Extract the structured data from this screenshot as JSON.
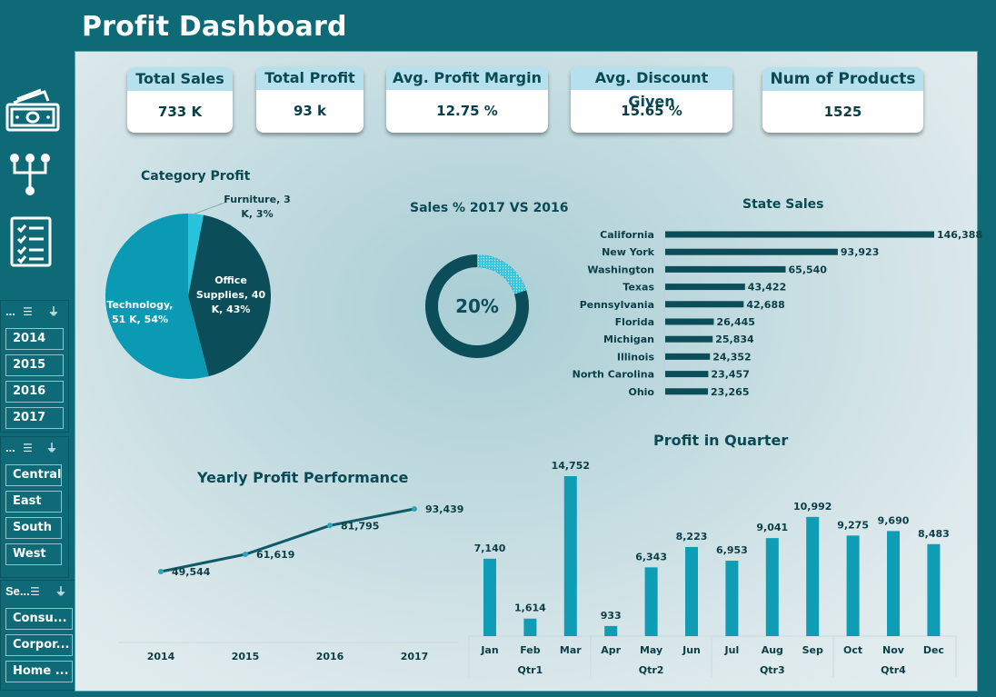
{
  "title": "Profit Dashboard",
  "kpis": [
    {
      "label": "Total Sales",
      "value": "733 K"
    },
    {
      "label": "Total Profit",
      "value": "93 k"
    },
    {
      "label": "Avg. Profit Margin",
      "value": "12.75 %"
    },
    {
      "label": "Avg. Discount Given",
      "value": "15.65 %"
    },
    {
      "label": "Num of Products",
      "value": "1525"
    }
  ],
  "side_icons": [
    "money-icon",
    "hierarchy-icon",
    "checklist-icon"
  ],
  "slicers": [
    {
      "header": "...",
      "items": [
        "2014",
        "2015",
        "2016",
        "2017"
      ]
    },
    {
      "header": "...",
      "items": [
        "Central",
        "East",
        "South",
        "West"
      ]
    },
    {
      "header": "Se...",
      "items": [
        "Consu...",
        "Corpor...",
        "Home ..."
      ]
    }
  ],
  "colors": {
    "dark": "#0b4d58",
    "teal": "#0a9ab3",
    "light": "#27c4dc",
    "bar": "#0e9db5",
    "line": "#0e5a66"
  },
  "chart_data": [
    {
      "type": "pie",
      "title": "Category Profit",
      "slices": [
        {
          "name": "Furniture",
          "value": 3,
          "pct": 3,
          "label": "Furniture, 3 K, 3%"
        },
        {
          "name": "Office Supplies",
          "value": 40,
          "pct": 43,
          "label": "Office Supplies, 40 K, 43%"
        },
        {
          "name": "Technology",
          "value": 51,
          "pct": 54,
          "label": "Technology, 51 K, 54%"
        }
      ]
    },
    {
      "type": "pie",
      "title": "Sales % 2017 VS 2016",
      "value": 20,
      "center_label": "20%"
    },
    {
      "type": "bar",
      "title": "State Sales",
      "categories": [
        "California",
        "New York",
        "Washington",
        "Texas",
        "Pennsylvania",
        "Florida",
        "Michigan",
        "Illinois",
        "North Carolina",
        "Ohio"
      ],
      "values": [
        146388,
        93923,
        65540,
        43422,
        42688,
        26445,
        25834,
        24352,
        23457,
        23265
      ],
      "value_labels": [
        "146,388",
        "93,923",
        "65,540",
        "43,422",
        "42,688",
        "26,445",
        "25,834",
        "24,352",
        "23,457",
        "23,265"
      ]
    },
    {
      "type": "line",
      "title": "Yearly Profit Performance",
      "x": [
        "2014",
        "2015",
        "2016",
        "2017"
      ],
      "values": [
        49544,
        61619,
        81795,
        93439
      ],
      "value_labels": [
        "49,544",
        "61,619",
        "81,795",
        "93,439"
      ]
    },
    {
      "type": "bar",
      "title": "Profit in Quarter",
      "categories": [
        "Jan",
        "Feb",
        "Mar",
        "Apr",
        "May",
        "Jun",
        "Jul",
        "Aug",
        "Sep",
        "Oct",
        "Nov",
        "Dec"
      ],
      "groups": [
        "Qtr1",
        "Qtr2",
        "Qtr3",
        "Qtr4"
      ],
      "values": [
        7140,
        1614,
        14752,
        933,
        6343,
        8223,
        6953,
        9041,
        10992,
        9275,
        9690,
        8483
      ],
      "value_labels": [
        "7,140",
        "1,614",
        "14,752",
        "933",
        "6,343",
        "8,223",
        "6,953",
        "9,041",
        "10,992",
        "9,275",
        "9,690",
        "8,483"
      ]
    }
  ]
}
